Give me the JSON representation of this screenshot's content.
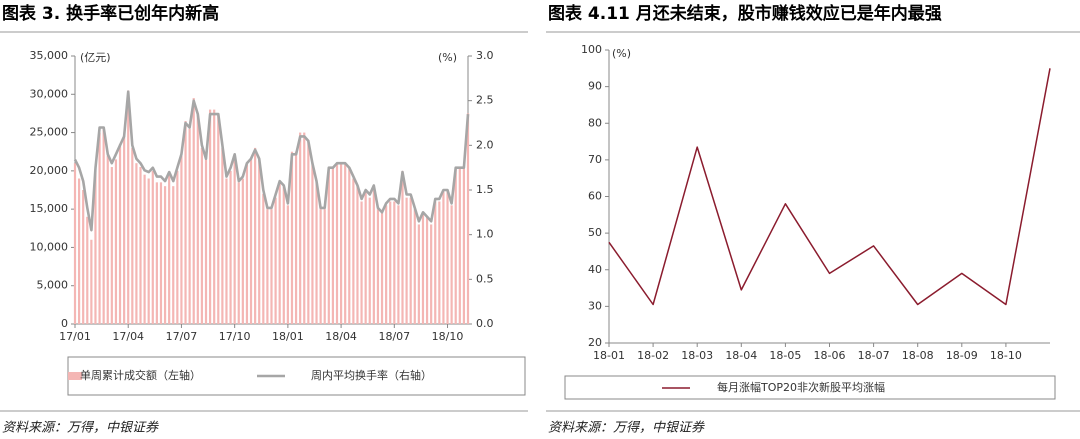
{
  "chart_data": [
    {
      "type": "bar",
      "title": "图表 3. 换手率已创年内新高",
      "y_label": "(亿元)",
      "y2_label": "(%)",
      "source": "资料来源：万得，中银证券",
      "categories": [
        "17/01",
        null,
        null,
        null,
        null,
        null,
        null,
        null,
        null,
        null,
        null,
        null,
        null,
        "17/04",
        null,
        null,
        null,
        null,
        null,
        null,
        null,
        null,
        null,
        null,
        null,
        null,
        "17/07",
        null,
        null,
        null,
        null,
        null,
        null,
        null,
        null,
        null,
        null,
        null,
        null,
        "17/10",
        null,
        null,
        null,
        null,
        null,
        null,
        null,
        null,
        null,
        null,
        null,
        null,
        "18/01",
        null,
        null,
        null,
        null,
        null,
        null,
        null,
        null,
        null,
        null,
        null,
        null,
        "18/04",
        null,
        null,
        null,
        null,
        null,
        null,
        null,
        null,
        null,
        null,
        null,
        null,
        "18/07",
        null,
        null,
        null,
        null,
        null,
        null,
        null,
        null,
        null,
        null,
        null,
        null,
        "18/10",
        null,
        null,
        null,
        null,
        null
      ],
      "ylim": [
        0,
        35000
      ],
      "yticks": [
        0,
        {
          "value": 5000,
          "label": "5,000"
        },
        {
          "value": 10000,
          "label": "10,000"
        },
        {
          "value": 15000,
          "label": "15,000"
        },
        {
          "value": 20000,
          "label": "20,000"
        },
        {
          "value": 25000,
          "label": "25,000"
        },
        {
          "value": 30000,
          "label": "30,000"
        },
        {
          "value": 35000,
          "label": "35,000"
        }
      ],
      "y2lim": [
        0,
        3
      ],
      "y2ticks": [
        {
          "value": 0,
          "label": "0.0"
        },
        {
          "value": 0.5,
          "label": "0.5"
        },
        {
          "value": 1,
          "label": "1.0"
        },
        {
          "value": 1.5,
          "label": "1.5"
        },
        {
          "value": 2,
          "label": "2.0"
        },
        {
          "value": 2.5,
          "label": "2.5"
        },
        {
          "value": 3,
          "label": "3.0"
        }
      ],
      "series": [
        {
          "name": "单周累计成交额（左轴）",
          "color": "#f4b6b4",
          "values": [
            21000,
            19000,
            17500,
            14000,
            11000,
            20000,
            25000,
            25500,
            22000,
            20500,
            21500,
            23500,
            24500,
            30500,
            23000,
            21000,
            20500,
            19500,
            19000,
            20000,
            18500,
            18500,
            18000,
            19500,
            18000,
            20000,
            22000,
            26500,
            25500,
            29500,
            27500,
            23000,
            21500,
            28000,
            28000,
            27500,
            23000,
            19000,
            20000,
            22000,
            18500,
            19000,
            21000,
            21500,
            23000,
            21500,
            17000,
            15000,
            15000,
            16500,
            18500,
            18000,
            15500,
            22500,
            22500,
            25000,
            25000,
            24000,
            21000,
            18500,
            15000,
            15000,
            20500,
            20500,
            21000,
            21000,
            21000,
            20500,
            19000,
            18000,
            16000,
            17500,
            16500,
            18000,
            15000,
            14500,
            15500,
            16000,
            16000,
            15500,
            20000,
            16500,
            16500,
            15000,
            13000,
            14500,
            14000,
            13000,
            16000,
            16000,
            17500,
            17500,
            15500,
            20500,
            20500,
            20500,
            27500
          ]
        },
        {
          "name": "周内平均换手率（右轴）",
          "color": "#a6a6a6",
          "axis": "y2",
          "values": [
            1.84,
            1.75,
            1.6,
            1.3,
            1.05,
            1.75,
            2.2,
            2.2,
            1.9,
            1.8,
            1.9,
            2.0,
            2.1,
            2.6,
            2.0,
            1.85,
            1.8,
            1.72,
            1.7,
            1.75,
            1.65,
            1.65,
            1.6,
            1.7,
            1.6,
            1.75,
            1.9,
            2.25,
            2.2,
            2.5,
            2.35,
            2.0,
            1.85,
            2.35,
            2.35,
            2.35,
            2.0,
            1.65,
            1.75,
            1.9,
            1.6,
            1.65,
            1.8,
            1.85,
            1.95,
            1.85,
            1.5,
            1.3,
            1.3,
            1.45,
            1.6,
            1.55,
            1.35,
            1.9,
            1.9,
            2.1,
            2.1,
            2.05,
            1.8,
            1.6,
            1.3,
            1.3,
            1.75,
            1.75,
            1.8,
            1.8,
            1.8,
            1.75,
            1.65,
            1.55,
            1.4,
            1.5,
            1.45,
            1.55,
            1.3,
            1.25,
            1.35,
            1.4,
            1.4,
            1.35,
            1.7,
            1.45,
            1.45,
            1.3,
            1.15,
            1.25,
            1.2,
            1.15,
            1.4,
            1.4,
            1.5,
            1.5,
            1.35,
            1.75,
            1.75,
            1.75,
            2.35
          ]
        }
      ]
    },
    {
      "type": "line",
      "title": "图表 4.11 月还未结束，股市赚钱效应已是年内最强",
      "y_label": "(%)",
      "source": "资料来源：万得，中银证券",
      "categories": [
        "18-01",
        "18-02",
        "18-03",
        "18-04",
        "18-05",
        "18-06",
        "18-07",
        "18-08",
        "18-09",
        "18-10",
        null
      ],
      "ylim": [
        20,
        100
      ],
      "yticks": [
        20,
        30,
        40,
        50,
        60,
        70,
        80,
        90,
        100
      ],
      "series": [
        {
          "name": "每月涨幅TOP20非次新股平均涨幅",
          "color": "#8b1c2e",
          "values": [
            47.5,
            30.5,
            73.5,
            34.5,
            58,
            39,
            46.5,
            30.5,
            39,
            30.5,
            95
          ]
        }
      ]
    }
  ]
}
